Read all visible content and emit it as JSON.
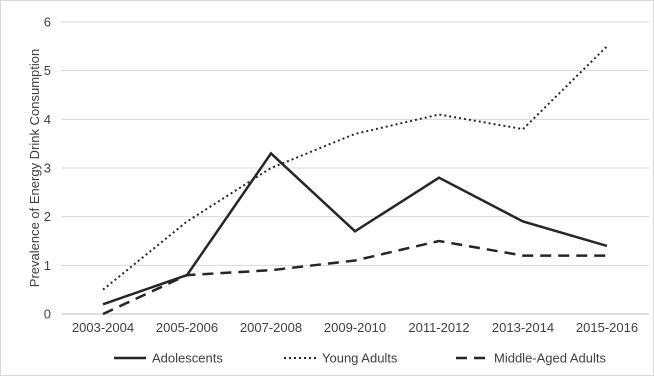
{
  "chart_data": {
    "type": "line",
    "title": "",
    "xlabel": "",
    "ylabel": "Prevalence of Energy Drink Consumption",
    "categories": [
      "2003-2004",
      "2005-2006",
      "2007-2008",
      "2009-2010",
      "2011-2012",
      "2013-2014",
      "2015-2016"
    ],
    "ylim": [
      0,
      6
    ],
    "yticks": [
      0,
      1,
      2,
      3,
      4,
      5,
      6
    ],
    "grid": true,
    "legend": "bottom",
    "series": [
      {
        "name": "Adolescents",
        "values": [
          0.2,
          0.8,
          3.3,
          1.7,
          2.8,
          1.9,
          1.4
        ],
        "style": "solid",
        "color": "#262626"
      },
      {
        "name": "Young Adults",
        "values": [
          0.5,
          1.9,
          3.0,
          3.7,
          4.1,
          3.8,
          5.5
        ],
        "style": "dotted",
        "color": "#262626"
      },
      {
        "name": "Middle-Aged Adults",
        "values": [
          0.0,
          0.8,
          0.9,
          1.1,
          1.5,
          1.2,
          1.2
        ],
        "style": "dashed",
        "color": "#262626"
      }
    ]
  }
}
